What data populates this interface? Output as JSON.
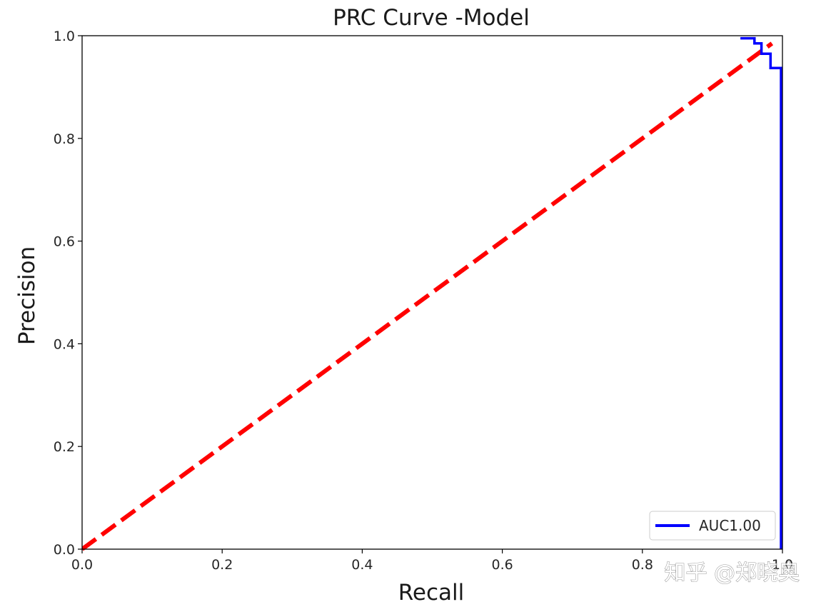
{
  "watermark": "知乎 @郑晓奥",
  "chart_data": {
    "type": "line",
    "title": "PRC Curve -Model",
    "xlabel": "Recall",
    "ylabel": "Precision",
    "xlim": [
      0.0,
      1.0
    ],
    "ylim": [
      0.0,
      1.0
    ],
    "xticks": [
      0.0,
      0.2,
      0.4,
      0.6,
      0.8,
      1.0
    ],
    "yticks": [
      0.0,
      0.2,
      0.4,
      0.6,
      0.8,
      1.0
    ],
    "xtick_labels": [
      "0.0",
      "0.2",
      "0.4",
      "0.6",
      "0.8",
      "1.0"
    ],
    "ytick_labels": [
      "0.0",
      "0.2",
      "0.4",
      "0.6",
      "0.8",
      "1.0"
    ],
    "grid": false,
    "legend_position": "lower right",
    "series": [
      {
        "name": "AUC1.00",
        "color": "#0000ff",
        "style": "step",
        "x": [
          0.94,
          0.96,
          0.96,
          0.97,
          0.97,
          0.983,
          0.983,
          0.998,
          0.998
        ],
        "y": [
          0.995,
          0.995,
          0.985,
          0.985,
          0.965,
          0.965,
          0.937,
          0.937,
          0.0
        ]
      },
      {
        "color": "#ff0000",
        "style": "dashed",
        "x": [
          0.0,
          0.985
        ],
        "y": [
          0.0,
          0.985
        ]
      }
    ]
  }
}
